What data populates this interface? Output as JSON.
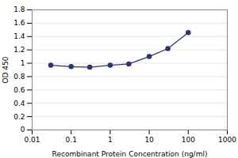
{
  "chart_data": {
    "type": "line",
    "x": [
      0.03,
      0.1,
      0.3,
      1,
      3,
      10,
      30,
      100
    ],
    "y": [
      0.97,
      0.95,
      0.94,
      0.97,
      0.99,
      1.1,
      1.22,
      1.46
    ],
    "color": "#2d3080",
    "marker": "circle",
    "xlabel": "Recombinant Protein Concentration (ng/ml)",
    "ylabel": "OD 450",
    "log": "x",
    "xlim": [
      0.01,
      1000
    ],
    "ylim": [
      0,
      1.8
    ],
    "xticks": [
      0.01,
      0.1,
      1,
      10,
      100,
      1000
    ],
    "yticks": [
      0,
      0.2,
      0.4,
      0.6,
      0.8,
      1,
      1.2,
      1.4,
      1.6,
      1.8
    ],
    "grid": "y"
  }
}
